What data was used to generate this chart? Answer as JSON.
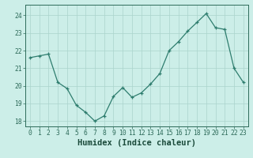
{
  "x": [
    0,
    1,
    2,
    3,
    4,
    5,
    6,
    7,
    8,
    9,
    10,
    11,
    12,
    13,
    14,
    15,
    16,
    17,
    18,
    19,
    20,
    21,
    22,
    23
  ],
  "y": [
    21.6,
    21.7,
    21.8,
    20.2,
    19.85,
    18.9,
    18.5,
    18.0,
    18.3,
    19.4,
    19.9,
    19.35,
    19.6,
    20.1,
    20.7,
    22.0,
    22.5,
    23.1,
    23.6,
    24.1,
    23.3,
    23.2,
    21.0,
    20.2
  ],
  "xlabel": "Humidex (Indice chaleur)",
  "xlim": [
    -0.5,
    23.5
  ],
  "ylim": [
    17.7,
    24.6
  ],
  "yticks": [
    18,
    19,
    20,
    21,
    22,
    23,
    24
  ],
  "xticks": [
    0,
    1,
    2,
    3,
    4,
    5,
    6,
    7,
    8,
    9,
    10,
    11,
    12,
    13,
    14,
    15,
    16,
    17,
    18,
    19,
    20,
    21,
    22,
    23
  ],
  "line_color": "#2e7d6e",
  "bg_color": "#cceee8",
  "grid_color": "#aad4cc",
  "tick_color": "#2e6b5a",
  "xlabel_color": "#1a4a3a",
  "font_size_label": 6.5,
  "font_size_tick": 5.8,
  "font_size_xlabel": 7.5
}
